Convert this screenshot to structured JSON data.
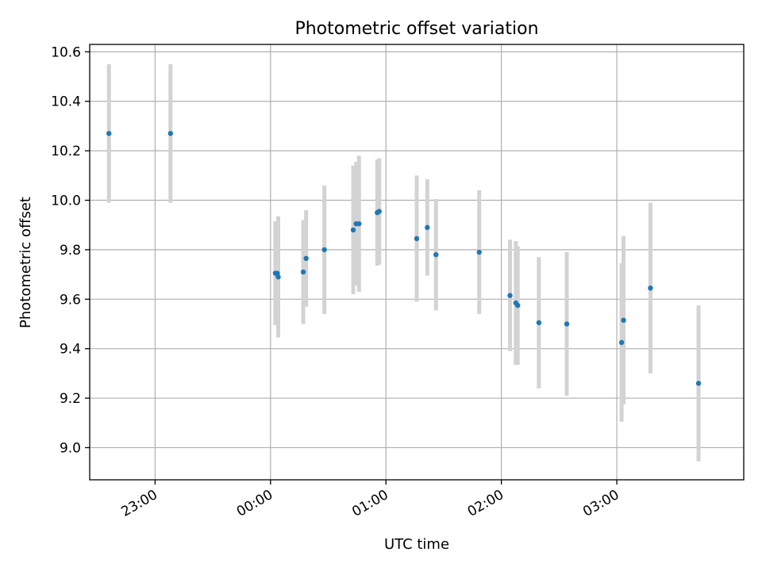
{
  "chart_data": {
    "type": "scatter",
    "title": "Photometric offset variation",
    "xlabel": "UTC time",
    "ylabel": "Photometric offset",
    "x_axis_type": "time",
    "x_range": [
      "22:26",
      "04:06"
    ],
    "ylim": [
      8.87,
      10.63
    ],
    "x_ticks": [
      "23:00",
      "00:00",
      "01:00",
      "02:00",
      "03:00"
    ],
    "y_ticks": [
      9.0,
      9.2,
      9.4,
      9.6,
      9.8,
      10.0,
      10.2,
      10.4,
      10.6
    ],
    "grid": true,
    "legend": "none",
    "colors": {
      "marker": "#1f77b4",
      "errorbar": "#d3d3d3"
    },
    "series": [
      {
        "points": [
          {
            "time": "22:36:00",
            "y": 10.27,
            "err": 0.28
          },
          {
            "time": "23:08:00",
            "y": 10.27,
            "err": 0.28
          },
          {
            "time": "00:02:30",
            "y": 9.705,
            "err": 0.21
          },
          {
            "time": "00:03:30",
            "y": 9.705,
            "err": 0.21
          },
          {
            "time": "00:04:00",
            "y": 9.69,
            "err": 0.245
          },
          {
            "time": "00:17:00",
            "y": 9.71,
            "err": 0.21
          },
          {
            "time": "00:18:30",
            "y": 9.765,
            "err": 0.195
          },
          {
            "time": "00:28:00",
            "y": 9.8,
            "err": 0.26
          },
          {
            "time": "00:43:00",
            "y": 9.88,
            "err": 0.26
          },
          {
            "time": "00:44:30",
            "y": 9.905,
            "err": 0.25
          },
          {
            "time": "00:46:00",
            "y": 9.905,
            "err": 0.275
          },
          {
            "time": "00:55:30",
            "y": 9.95,
            "err": 0.215
          },
          {
            "time": "00:56:30",
            "y": 9.955,
            "err": 0.215
          },
          {
            "time": "01:16:00",
            "y": 9.845,
            "err": 0.255
          },
          {
            "time": "01:21:30",
            "y": 9.89,
            "err": 0.195
          },
          {
            "time": "01:26:00",
            "y": 9.78,
            "err": 0.225
          },
          {
            "time": "01:48:30",
            "y": 9.79,
            "err": 0.25
          },
          {
            "time": "02:04:30",
            "y": 9.615,
            "err": 0.225
          },
          {
            "time": "02:07:30",
            "y": 9.585,
            "err": 0.25
          },
          {
            "time": "02:08:30",
            "y": 9.575,
            "err": 0.24
          },
          {
            "time": "02:19:30",
            "y": 9.505,
            "err": 0.265
          },
          {
            "time": "02:34:00",
            "y": 9.5,
            "err": 0.29
          },
          {
            "time": "03:02:30",
            "y": 9.425,
            "err": 0.32
          },
          {
            "time": "03:03:30",
            "y": 9.515,
            "err": 0.34
          },
          {
            "time": "03:17:30",
            "y": 9.645,
            "err": 0.345
          },
          {
            "time": "03:42:30",
            "y": 9.26,
            "err": 0.315
          }
        ]
      }
    ]
  }
}
